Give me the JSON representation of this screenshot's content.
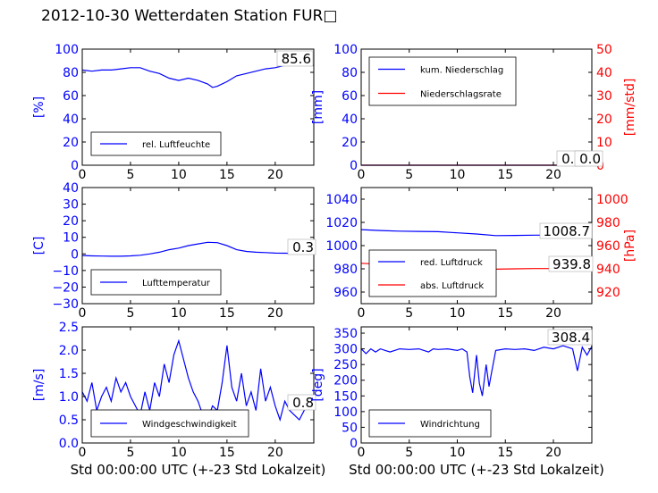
{
  "title": "2012-10-30 Wetterdaten Station FUR□",
  "colors": {
    "primary": "#0000ff",
    "secondary": "#ff0000",
    "axis": "#000000",
    "title": "#000000"
  },
  "chart_data": [
    {
      "type": "line",
      "ylabel": "[%]",
      "xlim": [
        0,
        24
      ],
      "ylim": [
        0,
        100
      ],
      "xticks": [
        0,
        5,
        10,
        15,
        20
      ],
      "yticks": [
        0,
        20,
        40,
        60,
        80,
        100
      ],
      "current_value": "85.6",
      "legend_position": "lower-left",
      "series": [
        {
          "name": "rel. Luftfeuchte",
          "color": "#0000ff",
          "x": [
            0,
            1,
            2,
            3,
            4,
            5,
            6,
            7,
            8,
            9,
            10,
            11,
            12,
            13,
            13.5,
            14,
            15,
            16,
            17,
            18,
            19,
            20,
            21,
            22,
            23,
            24
          ],
          "y": [
            82,
            81,
            82,
            82,
            83,
            84,
            84,
            81,
            79,
            75,
            73,
            75,
            73,
            70,
            67,
            68,
            72,
            77,
            79,
            81,
            83,
            84,
            86,
            87,
            86,
            86
          ]
        }
      ]
    },
    {
      "type": "line",
      "ylabel": "[mm]",
      "ylabel_right": "[mm/std]",
      "xlim": [
        0,
        24
      ],
      "ylim": [
        0,
        100
      ],
      "ylim_right": [
        0,
        50
      ],
      "xticks": [
        0,
        5,
        10,
        15,
        20
      ],
      "yticks": [
        0,
        20,
        40,
        60,
        80,
        100
      ],
      "yticks_right": [
        0,
        10,
        20,
        30,
        40,
        50
      ],
      "current_value": "0.0",
      "current_value_2": "0.0",
      "legend_position": "upper-left",
      "series": [
        {
          "name": "kum. Niederschlag",
          "color": "#0000ff",
          "axis": "left",
          "x": [
            0,
            24
          ],
          "y": [
            0,
            0
          ]
        },
        {
          "name": "Niederschlagsrate",
          "color": "#ff0000",
          "axis": "right",
          "x": [
            0,
            24
          ],
          "y": [
            0,
            0
          ]
        }
      ]
    },
    {
      "type": "line",
      "ylabel": "[C]",
      "xlim": [
        0,
        24
      ],
      "ylim": [
        -30,
        40
      ],
      "xticks": [
        0,
        5,
        10,
        15,
        20
      ],
      "yticks": [
        -30,
        -20,
        -10,
        0,
        10,
        20,
        30,
        40
      ],
      "current_value": "0.3",
      "legend_position": "lower-left",
      "series": [
        {
          "name": "Lufttemperatur",
          "color": "#0000ff",
          "x": [
            0,
            1,
            2,
            3,
            4,
            5,
            6,
            7,
            8,
            9,
            10,
            11,
            12,
            13,
            14,
            15,
            16,
            17,
            18,
            19,
            20,
            21,
            22,
            23,
            24
          ],
          "y": [
            -1,
            -1.2,
            -1.3,
            -1.4,
            -1.4,
            -1.2,
            -0.8,
            0,
            1,
            2.5,
            3.5,
            5,
            6,
            7,
            6.8,
            5,
            2.5,
            1.5,
            1,
            0.8,
            0.5,
            0.4,
            0.3,
            0.3,
            0.3
          ]
        }
      ]
    },
    {
      "type": "line",
      "ylabel_right": "[hPa]",
      "xlim": [
        0,
        24
      ],
      "ylim": [
        950,
        1050
      ],
      "ylim_right": [
        910,
        1010
      ],
      "xticks": [
        0,
        5,
        10,
        15,
        20
      ],
      "yticks": [
        960,
        980,
        1000,
        1020,
        1040
      ],
      "yticks_right": [
        920,
        940,
        960,
        980,
        1000
      ],
      "current_value": "1008.7",
      "current_value_2": "939.8",
      "legend_position": "lower-left",
      "series": [
        {
          "name": "red. Luftdruck",
          "color": "#0000ff",
          "axis": "left",
          "x": [
            0,
            2,
            4,
            6,
            8,
            10,
            12,
            14,
            16,
            18,
            20,
            22,
            24
          ],
          "y": [
            1013.8,
            1013,
            1012.5,
            1012.2,
            1012,
            1011,
            1010,
            1008.6,
            1008.8,
            1009,
            1009,
            1008.8,
            1008.7
          ]
        },
        {
          "name": "abs. Luftdruck",
          "color": "#ff0000",
          "axis": "right",
          "x": [
            0,
            2,
            4,
            6,
            8,
            10,
            12,
            14,
            16,
            18,
            20,
            22,
            24
          ],
          "y": [
            944.8,
            944,
            943.5,
            943.2,
            943,
            942,
            941,
            939.7,
            940,
            940.2,
            940.2,
            940,
            939.8
          ]
        }
      ]
    },
    {
      "type": "line",
      "ylabel": "[m/s]",
      "xlabel": "Std 00:00:00 UTC (+-23 Std Lokalzeit)",
      "xlim": [
        0,
        24
      ],
      "ylim": [
        0,
        2.5
      ],
      "xticks": [
        0,
        5,
        10,
        15,
        20
      ],
      "yticks": [
        0.0,
        0.5,
        1.0,
        1.5,
        2.0,
        2.5
      ],
      "current_value": "0.8",
      "legend_position": "lower-left",
      "series": [
        {
          "name": "Windgeschwindigkeit",
          "color": "#0000ff",
          "x": [
            0,
            0.5,
            1,
            1.5,
            2,
            2.5,
            3,
            3.5,
            4,
            4.5,
            5,
            5.5,
            6,
            6.5,
            7,
            7.5,
            8,
            8.5,
            9,
            9.5,
            10,
            10.5,
            11,
            11.5,
            12,
            12.5,
            13,
            13.5,
            14,
            14.5,
            15,
            15.5,
            16,
            16.5,
            17,
            17.5,
            18,
            18.5,
            19,
            19.5,
            20,
            20.5,
            21,
            21.5,
            22,
            22.5,
            23,
            23.5,
            24
          ],
          "y": [
            1.1,
            0.9,
            1.3,
            0.7,
            1.0,
            1.2,
            0.9,
            1.4,
            1.1,
            1.3,
            1.0,
            0.8,
            0.6,
            1.1,
            0.7,
            1.3,
            1.0,
            1.7,
            1.3,
            1.9,
            2.2,
            1.8,
            1.4,
            1.1,
            0.9,
            0.6,
            0.5,
            0.8,
            0.7,
            1.3,
            2.1,
            1.2,
            0.9,
            1.5,
            0.8,
            1.1,
            0.7,
            1.6,
            0.9,
            1.2,
            0.8,
            0.5,
            0.9,
            0.7,
            0.6,
            0.5,
            0.7,
            0.9,
            0.8
          ]
        }
      ]
    },
    {
      "type": "line",
      "ylabel": "[deg]",
      "xlabel": "Std 00:00:00 UTC (+-23 Std Lokalzeit)",
      "xlim": [
        0,
        24
      ],
      "ylim": [
        0,
        370
      ],
      "xticks": [
        0,
        5,
        10,
        15,
        20
      ],
      "yticks": [
        0,
        50,
        100,
        150,
        200,
        250,
        300,
        350
      ],
      "current_value": "308.4",
      "legend_position": "lower-left",
      "series": [
        {
          "name": "Windrichtung",
          "color": "#0000ff",
          "x": [
            0,
            0.5,
            1,
            1.5,
            2,
            2.5,
            3,
            4,
            5,
            6,
            7,
            7.5,
            8,
            9,
            10,
            10.5,
            11,
            11.3,
            11.6,
            12,
            12.3,
            12.6,
            13,
            13.3,
            13.6,
            14,
            15,
            16,
            17,
            18,
            19,
            20,
            21,
            22,
            22.5,
            23,
            23.5,
            24
          ],
          "y": [
            300,
            285,
            300,
            290,
            300,
            295,
            290,
            300,
            298,
            300,
            290,
            300,
            298,
            300,
            295,
            300,
            290,
            210,
            160,
            280,
            190,
            150,
            250,
            180,
            230,
            295,
            300,
            298,
            300,
            295,
            305,
            300,
            310,
            300,
            230,
            305,
            280,
            308
          ]
        }
      ]
    }
  ]
}
